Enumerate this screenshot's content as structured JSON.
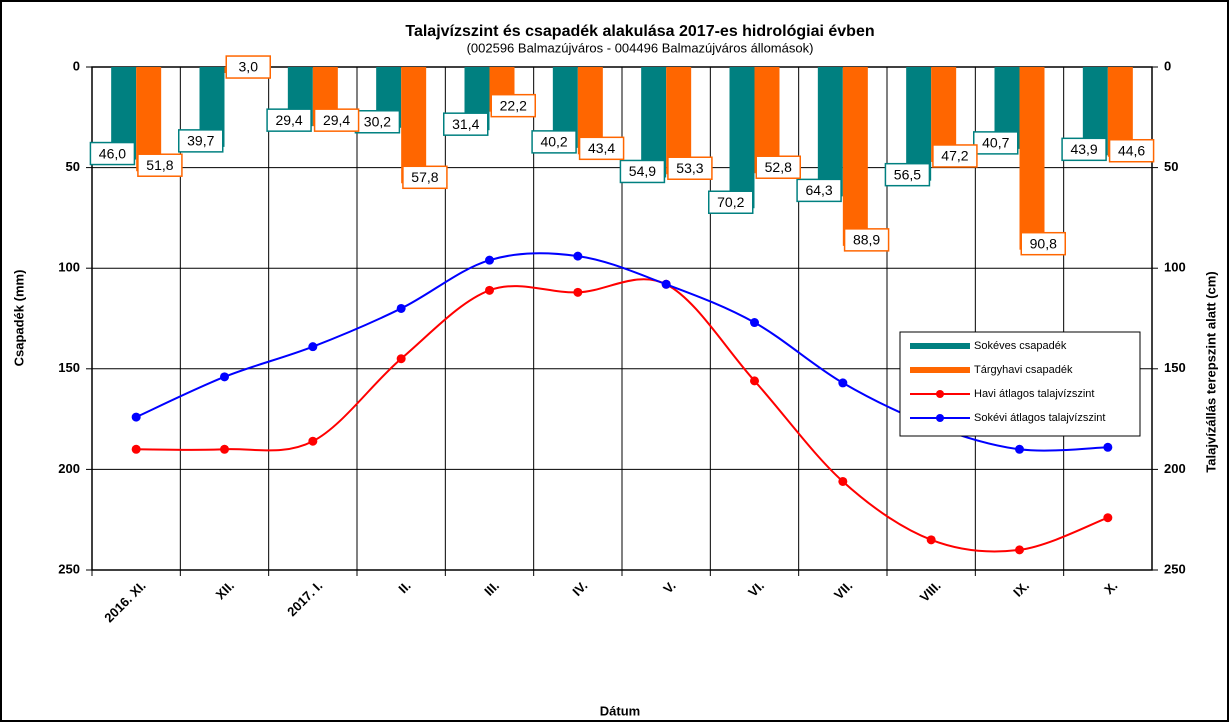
{
  "chart_data": {
    "type": "bar-line",
    "title": "Talajvízszint és csapadék alakulása 2017-es hidrológiai évben",
    "subtitle": "(002596  Balmazújváros  - 004496  Balmazújváros  állomások)",
    "x_label": "Dátum",
    "y_label": "Csapadék (mm)",
    "y2_label": "Talajvízállás terepszint alatt (cm)",
    "categories": [
      "2016. XI.",
      "XII.",
      "2017. I.",
      "II.",
      "III.",
      "IV.",
      "V.",
      "VI.",
      "VII.",
      "VIII.",
      "IX.",
      "X."
    ],
    "ylim": [
      0,
      250
    ],
    "yticks": [
      0,
      50,
      100,
      150,
      200,
      250
    ],
    "y2lim": [
      0,
      250
    ],
    "y2ticks": [
      0,
      50,
      100,
      150,
      200,
      250
    ],
    "inverted": true,
    "grid": true,
    "series": [
      {
        "name": "Sokéves csapadék",
        "kind": "bar",
        "color": "#008080",
        "values": [
          46.0,
          39.7,
          29.4,
          30.2,
          31.4,
          40.2,
          54.9,
          70.2,
          64.3,
          56.5,
          40.7,
          43.9
        ],
        "value_labels": [
          "46,0",
          "39,7",
          "29,4",
          "30,2",
          "31,4",
          "40,2",
          "54,9",
          "70,2",
          "64,3",
          "56,5",
          "40,7",
          "43,9"
        ]
      },
      {
        "name": "Tárgyhavi csapadék",
        "kind": "bar",
        "color": "#ff6600",
        "values": [
          51.8,
          3.0,
          29.4,
          57.8,
          22.2,
          43.4,
          53.3,
          52.8,
          88.9,
          47.2,
          90.8,
          44.6
        ],
        "value_labels": [
          "51,8",
          "3,0",
          "29,4",
          "57,8",
          "22,2",
          "43,4",
          "53,3",
          "52,8",
          "88,9",
          "47,2",
          "90,8",
          "44,6"
        ]
      },
      {
        "name": "Havi átlagos talajvízszint",
        "kind": "line",
        "axis": "y2",
        "color": "#ff0000",
        "values": [
          190,
          190,
          186,
          145,
          111,
          112,
          108,
          156,
          206,
          235,
          240,
          224
        ]
      },
      {
        "name": "Sokévi átlagos talajvízszint",
        "kind": "line",
        "axis": "y2",
        "color": "#0000ff",
        "values": [
          174,
          154,
          139,
          120,
          96,
          94,
          108,
          127,
          157,
          178,
          190,
          189
        ]
      }
    ]
  }
}
